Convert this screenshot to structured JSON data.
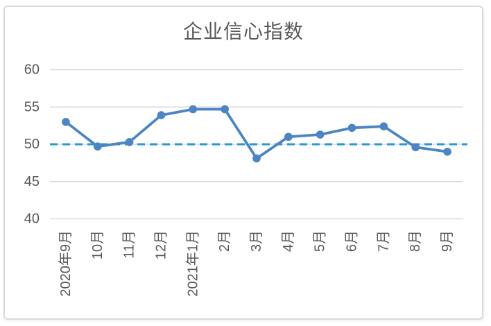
{
  "chart_data": {
    "type": "line",
    "title": "企业信心指数",
    "categories": [
      "2020年9月",
      "10月",
      "11月",
      "12月",
      "2021年1月",
      "2月",
      "3月",
      "4月",
      "5月",
      "6月",
      "7月",
      "8月",
      "9月"
    ],
    "series": [
      {
        "name": "企业信心指数",
        "values": [
          53.0,
          49.7,
          50.3,
          53.9,
          54.7,
          54.7,
          48.1,
          51.0,
          51.3,
          52.2,
          52.4,
          49.6,
          49.0
        ]
      }
    ],
    "reference_line": {
      "value": 50,
      "style": "dashed"
    },
    "xlabel": "",
    "ylabel": "",
    "ylim": [
      40,
      60
    ],
    "yticks": [
      40,
      45,
      50,
      55,
      60
    ],
    "grid": true,
    "legend": "none",
    "x_tick_rotation_degrees": 90
  },
  "colors": {
    "series": "#4b85c4",
    "reference_line": "#219ad8",
    "gridline": "#d9d9d9",
    "frame_border": "#d9d9d9",
    "text": "#595959",
    "background": "#ffffff"
  }
}
